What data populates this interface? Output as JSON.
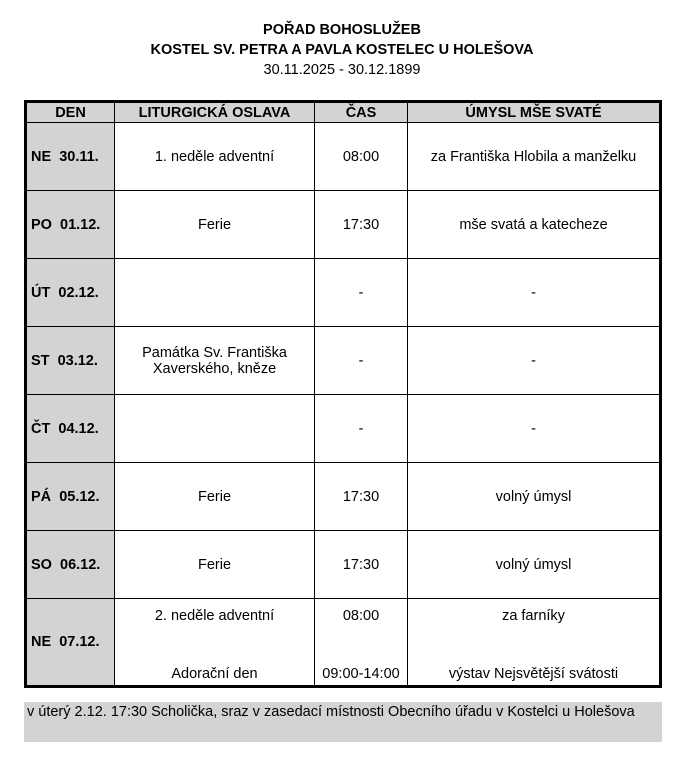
{
  "header": {
    "title": "POŘAD BOHOSLUŽEB",
    "church": "KOSTEL SV. PETRA A PAVLA KOSTELEC U HOLEŠOVA",
    "period": "30.11.2025 - 30.12.1899"
  },
  "table": {
    "columns": [
      "DEN",
      "LITURGICKÁ OSLAVA",
      "ČAS",
      "ÚMYSL MŠE SVATÉ"
    ],
    "rows": [
      {
        "day": "NE  30.11.",
        "celebration": [
          "1. neděle adventní"
        ],
        "time": [
          "08:00"
        ],
        "intention": [
          "za Františka Hlobila a manželku"
        ]
      },
      {
        "day": "PO  01.12.",
        "celebration": [
          "Ferie"
        ],
        "time": [
          "17:30"
        ],
        "intention": [
          "mše svatá a katecheze"
        ]
      },
      {
        "day": "ÚT  02.12.",
        "celebration": [
          ""
        ],
        "time": [
          "-"
        ],
        "intention": [
          "-"
        ]
      },
      {
        "day": "ST  03.12.",
        "celebration": [
          "Památka Sv. Františka Xaverského, kněze"
        ],
        "time": [
          "-"
        ],
        "intention": [
          "-"
        ]
      },
      {
        "day": "ČT  04.12.",
        "celebration": [
          ""
        ],
        "time": [
          "-"
        ],
        "intention": [
          "-"
        ]
      },
      {
        "day": "PÁ  05.12.",
        "celebration": [
          "Ferie"
        ],
        "time": [
          "17:30"
        ],
        "intention": [
          "volný úmysl"
        ]
      },
      {
        "day": "SO  06.12.",
        "celebration": [
          "Ferie"
        ],
        "time": [
          "17:30"
        ],
        "intention": [
          "volný úmysl"
        ]
      },
      {
        "day": "NE  07.12.",
        "celebration": [
          "2. neděle adventní",
          "Adorační den"
        ],
        "time": [
          "08:00",
          "09:00-14:00"
        ],
        "intention": [
          "za farníky",
          "výstav Nejsvětější svátosti"
        ]
      }
    ]
  },
  "note": "v úterý 2.12. 17:30 Scholička, sraz v zasedací místnosti Obecního úřadu v Kostelci u Holešova"
}
